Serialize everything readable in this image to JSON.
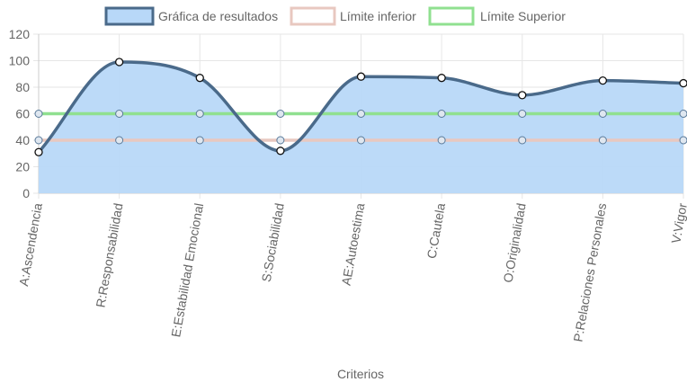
{
  "chart_data": {
    "type": "line",
    "categories": [
      "A:Ascendencia",
      "R:Responsabilidad",
      "E:Estabilidad Emocional",
      "S:Sociabilidad",
      "AE:Autoestima",
      "C:Cautela",
      "O:Originalidad",
      "P:Relaciones Personales",
      "V:Vigor"
    ],
    "xlabel": "Criterios",
    "ylabel": "",
    "ylim": [
      0,
      120
    ],
    "yticks": [
      0,
      20,
      40,
      60,
      80,
      100,
      120
    ],
    "grid": true,
    "legend_position": "top",
    "series": [
      {
        "name": "Gráfica de resultados",
        "values": [
          31,
          99,
          87,
          32,
          88,
          87,
          74,
          85,
          83
        ],
        "color": "#4a6a8a",
        "fill": "#b8d8f8",
        "filled": true,
        "smooth": true
      },
      {
        "name": "Límite inferior",
        "values": [
          40,
          40,
          40,
          40,
          40,
          40,
          40,
          40,
          40
        ],
        "color": "#e8c8c0",
        "filled": false,
        "smooth": false
      },
      {
        "name": "Límite Superior",
        "values": [
          60,
          60,
          60,
          60,
          60,
          60,
          60,
          60,
          60
        ],
        "color": "#90e090",
        "filled": false,
        "smooth": false
      }
    ]
  }
}
